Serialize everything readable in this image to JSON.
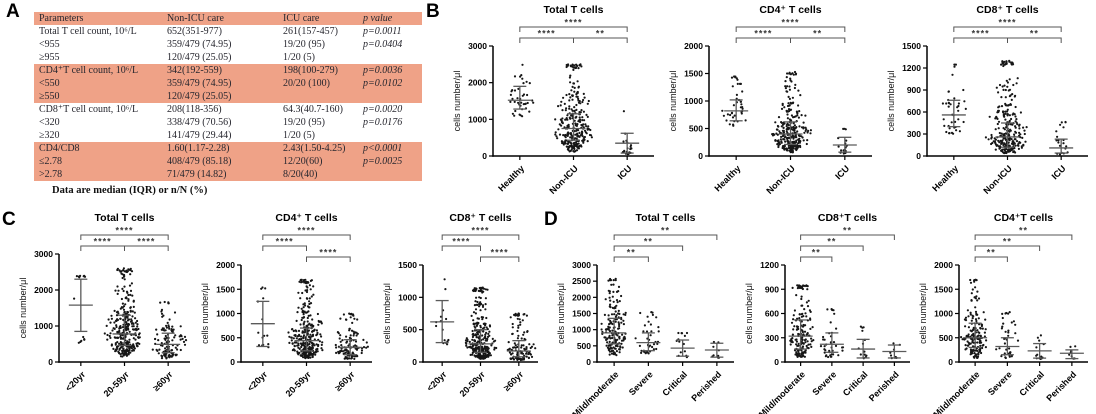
{
  "panel_labels": {
    "a": "A",
    "b": "B",
    "c": "C",
    "d": "D"
  },
  "style": {
    "table_shade_color": "#efa287",
    "point_color": "#161616",
    "errorbar_color": "#5a5a5a",
    "bracket_color": "#555555",
    "axis_color": "#000000"
  },
  "table": {
    "headers": [
      "Parameters",
      "Non-ICU care",
      "ICU care",
      "p value"
    ],
    "rows": [
      {
        "shaded": false,
        "cells": [
          "Total T cell count, 10⁶/L",
          "652(351-977)",
          "261(157-457)",
          "p=0.0011"
        ]
      },
      {
        "shaded": false,
        "cells": [
          "<955",
          "359/479 (74.95)",
          "19/20 (95)",
          "p=0.0404"
        ]
      },
      {
        "shaded": false,
        "cells": [
          "≥955",
          "120/479 (25.05)",
          "1/20 (5)",
          ""
        ]
      },
      {
        "shaded": true,
        "cells": [
          "CD4⁺T cell count, 10⁶/L",
          "342(192-559)",
          "198(100-279)",
          "p=0.0036"
        ]
      },
      {
        "shaded": true,
        "cells": [
          "<550",
          "359/479 (74.95)",
          "20/20 (100)",
          "p=0.0102"
        ]
      },
      {
        "shaded": true,
        "cells": [
          "≥550",
          "120/479 (25.05)",
          "",
          ""
        ]
      },
      {
        "shaded": false,
        "cells": [
          "CD8⁺T cell count, 10⁶/L",
          "208(118-356)",
          "64.3(40.7-160)",
          "p=0.0020"
        ]
      },
      {
        "shaded": false,
        "cells": [
          "<320",
          "338/479 (70.56)",
          "19/20 (95)",
          "p=0.0176"
        ]
      },
      {
        "shaded": false,
        "cells": [
          "≥320",
          "141/479 (29.44)",
          "1/20 (5)",
          ""
        ]
      },
      {
        "shaded": true,
        "cells": [
          "CD4/CD8",
          "1.60(1.17-2.28)",
          "2.43(1.50-4.25)",
          "p<0.0001"
        ]
      },
      {
        "shaded": true,
        "cells": [
          "≤2.78",
          "408/479 (85.18)",
          "12/20(60)",
          "p=0.0025"
        ]
      },
      {
        "shaded": true,
        "cells": [
          ">2.78",
          "71/479 (14.82)",
          "8/20(40)",
          ""
        ]
      }
    ],
    "footnote": "Data are median (IQR) or n/N (%)"
  },
  "chart_data": [
    {
      "type": "scatter",
      "panel": "B",
      "title": "Total T cells",
      "ylabel": "cells number/μl",
      "ylim": [
        0,
        3000
      ],
      "yticks": [
        0,
        1000,
        2000,
        3000
      ],
      "categories": [
        "Healthy",
        "Non-ICU",
        "ICU"
      ],
      "groups": [
        {
          "n": 40,
          "median": 1520,
          "iqr": [
            1280,
            1900
          ],
          "range": [
            1050,
            2500
          ]
        },
        {
          "n": 280,
          "median": 750,
          "iqr": [
            430,
            1150
          ],
          "range": [
            110,
            2500
          ]
        },
        {
          "n": 20,
          "median": 350,
          "iqr": [
            80,
            620
          ],
          "range": [
            50,
            1250
          ]
        }
      ],
      "significance": [
        {
          "groups": [
            0,
            1
          ],
          "label": "****",
          "tier": 1
        },
        {
          "groups": [
            1,
            2
          ],
          "label": "**",
          "tier": 1
        },
        {
          "groups": [
            0,
            2
          ],
          "label": "****",
          "tier": 2
        }
      ]
    },
    {
      "type": "scatter",
      "panel": "B",
      "title": "CD4⁺ T cells",
      "ylabel": "cells number/μl",
      "ylim": [
        0,
        2000
      ],
      "yticks": [
        0,
        500,
        1000,
        1500,
        2000
      ],
      "categories": [
        "Healthy",
        "Non-ICU",
        "ICU"
      ],
      "groups": [
        {
          "n": 40,
          "median": 820,
          "iqr": [
            640,
            1020
          ],
          "range": [
            540,
            1450
          ]
        },
        {
          "n": 280,
          "median": 400,
          "iqr": [
            210,
            620
          ],
          "range": [
            60,
            1550
          ]
        },
        {
          "n": 20,
          "median": 200,
          "iqr": [
            70,
            340
          ],
          "range": [
            40,
            500
          ]
        }
      ],
      "significance": [
        {
          "groups": [
            0,
            1
          ],
          "label": "****",
          "tier": 1
        },
        {
          "groups": [
            1,
            2
          ],
          "label": "**",
          "tier": 1
        },
        {
          "groups": [
            0,
            2
          ],
          "label": "****",
          "tier": 2
        }
      ]
    },
    {
      "type": "scatter",
      "panel": "B",
      "title": "CD8⁺ T cells",
      "ylabel": "cells number/μl",
      "ylim": [
        0,
        1500
      ],
      "yticks": [
        0,
        300,
        600,
        900,
        1200,
        1500
      ],
      "categories": [
        "Healthy",
        "Non-ICU",
        "ICU"
      ],
      "groups": [
        {
          "n": 40,
          "median": 560,
          "iqr": [
            400,
            760
          ],
          "range": [
            300,
            1250
          ]
        },
        {
          "n": 280,
          "median": 260,
          "iqr": [
            120,
            450
          ],
          "range": [
            40,
            1300
          ]
        },
        {
          "n": 20,
          "median": 110,
          "iqr": [
            40,
            230
          ],
          "range": [
            20,
            480
          ]
        }
      ],
      "significance": [
        {
          "groups": [
            0,
            1
          ],
          "label": "****",
          "tier": 1
        },
        {
          "groups": [
            1,
            2
          ],
          "label": "**",
          "tier": 1
        },
        {
          "groups": [
            0,
            2
          ],
          "label": "****",
          "tier": 2
        }
      ]
    },
    {
      "type": "scatter",
      "panel": "C",
      "title": "Total T cells",
      "ylabel": "cells number/μl",
      "ylim": [
        0,
        3000
      ],
      "yticks": [
        0,
        1000,
        2000,
        3000
      ],
      "categories": [
        "<20yr",
        "20-59yr",
        "≥60yr"
      ],
      "groups": [
        {
          "n": 15,
          "median": 1580,
          "iqr": [
            850,
            2300
          ],
          "range": [
            500,
            2400
          ]
        },
        {
          "n": 320,
          "median": 780,
          "iqr": [
            460,
            1300
          ],
          "range": [
            150,
            2600
          ]
        },
        {
          "n": 120,
          "median": 490,
          "iqr": [
            260,
            800
          ],
          "range": [
            100,
            1700
          ]
        }
      ],
      "significance": [
        {
          "groups": [
            0,
            1
          ],
          "label": "****",
          "tier": 1
        },
        {
          "groups": [
            1,
            2
          ],
          "label": "****",
          "tier": 1
        },
        {
          "groups": [
            0,
            2
          ],
          "label": "****",
          "tier": 2
        }
      ]
    },
    {
      "type": "scatter",
      "panel": "C",
      "title": "CD4⁺ T cells",
      "ylabel": "cells number/μl",
      "ylim": [
        0,
        2000
      ],
      "yticks": [
        0,
        500,
        1000,
        1500,
        2000
      ],
      "categories": [
        "<20yr",
        "20-59yr",
        "≥60yr"
      ],
      "groups": [
        {
          "n": 15,
          "median": 790,
          "iqr": [
            320,
            1250
          ],
          "range": [
            300,
            1550
          ]
        },
        {
          "n": 320,
          "median": 440,
          "iqr": [
            230,
            700
          ],
          "range": [
            80,
            1700
          ]
        },
        {
          "n": 120,
          "median": 300,
          "iqr": [
            150,
            460
          ],
          "range": [
            60,
            1000
          ]
        }
      ],
      "significance": [
        {
          "groups": [
            0,
            1
          ],
          "label": "****",
          "tier": 2
        },
        {
          "groups": [
            1,
            2
          ],
          "label": "****",
          "tier": 1
        },
        {
          "groups": [
            0,
            2
          ],
          "label": "****",
          "tier": 3
        }
      ]
    },
    {
      "type": "scatter",
      "panel": "C",
      "title": "CD8⁺ T cells",
      "ylabel": "cells number/μl",
      "ylim": [
        0,
        1500
      ],
      "yticks": [
        0,
        500,
        1000,
        1500
      ],
      "categories": [
        "<20yr",
        "20-59yr",
        "≥60yr"
      ],
      "groups": [
        {
          "n": 15,
          "median": 620,
          "iqr": [
            300,
            950
          ],
          "range": [
            250,
            1300
          ]
        },
        {
          "n": 320,
          "median": 280,
          "iqr": [
            150,
            500
          ],
          "range": [
            50,
            1150
          ]
        },
        {
          "n": 120,
          "median": 170,
          "iqr": [
            80,
            330
          ],
          "range": [
            30,
            750
          ]
        }
      ],
      "significance": [
        {
          "groups": [
            0,
            1
          ],
          "label": "****",
          "tier": 2
        },
        {
          "groups": [
            1,
            2
          ],
          "label": "****",
          "tier": 1
        },
        {
          "groups": [
            0,
            2
          ],
          "label": "****",
          "tier": 3
        }
      ]
    },
    {
      "type": "scatter",
      "panel": "D",
      "title": "Total T cells",
      "ylabel": "cells number/μl",
      "ylim": [
        0,
        3000
      ],
      "yticks": [
        0,
        500,
        1000,
        1500,
        2000,
        2500,
        3000
      ],
      "categories": [
        "Mild/moderate",
        "Severe",
        "Critical",
        "Perished"
      ],
      "groups": [
        {
          "n": 170,
          "median": 900,
          "iqr": [
            560,
            1350
          ],
          "range": [
            200,
            2600
          ]
        },
        {
          "n": 40,
          "median": 600,
          "iqr": [
            350,
            900
          ],
          "range": [
            250,
            1550
          ]
        },
        {
          "n": 14,
          "median": 430,
          "iqr": [
            180,
            680
          ],
          "range": [
            150,
            900
          ]
        },
        {
          "n": 9,
          "median": 370,
          "iqr": [
            150,
            580
          ],
          "range": [
            120,
            620
          ]
        }
      ],
      "significance": [
        {
          "groups": [
            0,
            1
          ],
          "label": "**",
          "tier": 1
        },
        {
          "groups": [
            0,
            2
          ],
          "label": "**",
          "tier": 2
        },
        {
          "groups": [
            0,
            3
          ],
          "label": "**",
          "tier": 3
        }
      ]
    },
    {
      "type": "scatter",
      "panel": "D",
      "title": "CD8⁺T cells",
      "ylabel": "cells number/μl",
      "ylim": [
        0,
        1200
      ],
      "yticks": [
        0,
        300,
        600,
        900,
        1200
      ],
      "categories": [
        "Mild/moderate",
        "Severe",
        "Critical",
        "Perished"
      ],
      "groups": [
        {
          "n": 170,
          "median": 320,
          "iqr": [
            160,
            520
          ],
          "range": [
            60,
            950
          ]
        },
        {
          "n": 40,
          "median": 220,
          "iqr": [
            120,
            360
          ],
          "range": [
            60,
            660
          ]
        },
        {
          "n": 14,
          "median": 160,
          "iqr": [
            50,
            280
          ],
          "range": [
            40,
            440
          ]
        },
        {
          "n": 9,
          "median": 130,
          "iqr": [
            50,
            210
          ],
          "range": [
            40,
            230
          ]
        }
      ],
      "significance": [
        {
          "groups": [
            0,
            1
          ],
          "label": "**",
          "tier": 1
        },
        {
          "groups": [
            0,
            2
          ],
          "label": "**",
          "tier": 2
        },
        {
          "groups": [
            0,
            3
          ],
          "label": "**",
          "tier": 3
        }
      ]
    },
    {
      "type": "scatter",
      "panel": "D",
      "title": "CD4⁺T cells",
      "ylabel": "cells number/μl",
      "ylim": [
        0,
        2000
      ],
      "yticks": [
        0,
        500,
        1000,
        1500,
        2000
      ],
      "categories": [
        "Mild/moderate",
        "Severe",
        "Critical",
        "Perished"
      ],
      "groups": [
        {
          "n": 170,
          "median": 500,
          "iqr": [
            300,
            800
          ],
          "range": [
            80,
            1700
          ]
        },
        {
          "n": 40,
          "median": 320,
          "iqr": [
            150,
            500
          ],
          "range": [
            80,
            1030
          ]
        },
        {
          "n": 14,
          "median": 230,
          "iqr": [
            80,
            380
          ],
          "range": [
            60,
            550
          ]
        },
        {
          "n": 9,
          "median": 180,
          "iqr": [
            70,
            250
          ],
          "range": [
            60,
            330
          ]
        }
      ],
      "significance": [
        {
          "groups": [
            0,
            1
          ],
          "label": "**",
          "tier": 1
        },
        {
          "groups": [
            0,
            2
          ],
          "label": "**",
          "tier": 2
        },
        {
          "groups": [
            0,
            3
          ],
          "label": "**",
          "tier": 3
        }
      ]
    }
  ]
}
